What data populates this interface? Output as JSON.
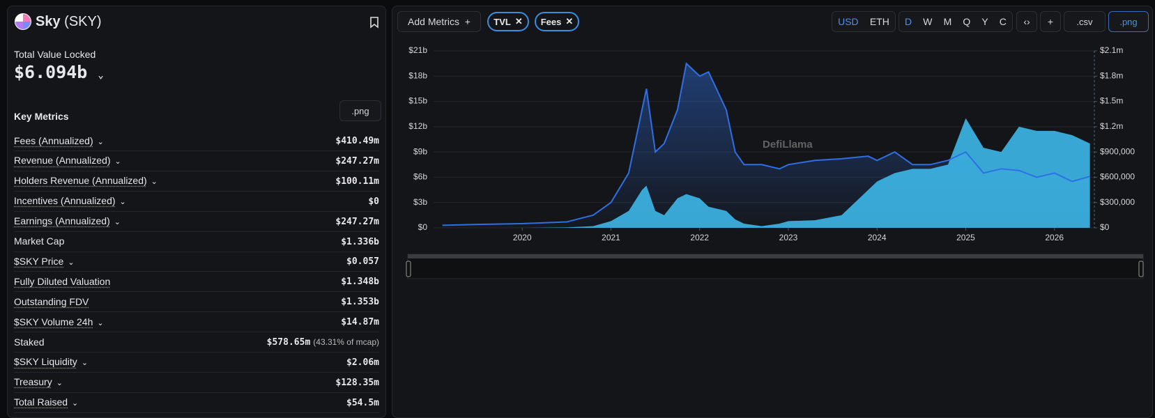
{
  "header": {
    "name": "Sky",
    "ticker": "(SKY)"
  },
  "tvl": {
    "label": "Total Value Locked",
    "value": "$6.094b"
  },
  "key_metrics": {
    "title": "Key Metrics",
    "export": ".png",
    "rows": [
      {
        "label": "Fees (Annualized)",
        "value": "$410.49m"
      },
      {
        "label": "Revenue (Annualized)",
        "value": "$247.27m"
      },
      {
        "label": "Holders Revenue (Annualized)",
        "value": "$100.11m"
      },
      {
        "label": "Incentives (Annualized)",
        "value": "$0"
      },
      {
        "label": "Earnings (Annualized)",
        "value": "$247.27m"
      },
      {
        "label": "Market Cap",
        "value": "$1.336b"
      },
      {
        "label": "$SKY Price",
        "value": "$0.057"
      },
      {
        "label": "Fully Diluted Valuation",
        "value": "$1.348b"
      },
      {
        "label": "Outstanding FDV",
        "value": "$1.353b"
      },
      {
        "label": "$SKY Volume 24h",
        "value": "$14.87m"
      },
      {
        "label": "Staked",
        "value": "$578.65m",
        "note": "(43.31% of mcap)"
      },
      {
        "label": "$SKY Liquidity",
        "value": "$2.06m"
      },
      {
        "label": "Treasury",
        "value": "$128.35m"
      },
      {
        "label": "Total Raised",
        "value": "$54.5m"
      }
    ]
  },
  "toolbar": {
    "add_metrics": "Add Metrics",
    "currencies": [
      "USD",
      "ETH"
    ],
    "periods": [
      "D",
      "W",
      "M",
      "Q",
      "Y",
      "C"
    ],
    "csv": ".csv",
    "png": ".png"
  },
  "chart_data": {
    "type": "area",
    "watermark": "DefiLlama",
    "x": [
      2019.1,
      2019.5,
      2020.0,
      2020.5,
      2020.8,
      2021.0,
      2021.2,
      2021.35,
      2021.4,
      2021.5,
      2021.6,
      2021.75,
      2021.85,
      2022.0,
      2022.1,
      2022.3,
      2022.4,
      2022.5,
      2022.7,
      2022.9,
      2023.0,
      2023.3,
      2023.6,
      2023.9,
      2024.0,
      2024.2,
      2024.4,
      2024.6,
      2024.8,
      2025.0,
      2025.2,
      2025.4,
      2025.6,
      2025.8,
      2026.0,
      2026.2,
      2026.4
    ],
    "series": [
      {
        "name": "TVL",
        "color": "#2f6fe4",
        "axis": "y",
        "values": [
          0.3,
          0.4,
          0.5,
          0.7,
          1.5,
          3.0,
          6.5,
          14,
          16.5,
          9,
          10,
          14,
          19.5,
          18,
          18.5,
          14,
          9,
          7.5,
          7.5,
          7,
          7.5,
          8,
          8.2,
          8.5,
          8,
          9,
          7.5,
          7.5,
          8,
          9,
          6.5,
          7,
          6.8,
          6,
          6.5,
          5.5,
          6.1
        ]
      },
      {
        "name": "Fees",
        "color": "#3fc1f5",
        "axis": "y2",
        "values": [
          0,
          0,
          0,
          5000,
          20000,
          80000,
          200000,
          450000,
          500000,
          200000,
          150000,
          350000,
          400000,
          350000,
          250000,
          200000,
          100000,
          50000,
          20000,
          50000,
          80000,
          90000,
          150000,
          450000,
          550000,
          650000,
          700000,
          700000,
          750000,
          1300000,
          950000,
          900000,
          1200000,
          1150000,
          1150000,
          1100000,
          1000000
        ]
      }
    ],
    "xlim": [
      2019.0,
      2026.45
    ],
    "xticks": [
      2020,
      2021,
      2022,
      2023,
      2024,
      2025,
      2026
    ],
    "ylim": [
      0,
      21
    ],
    "yticks": [
      {
        "value": 0,
        "label": "$0"
      },
      {
        "value": 3,
        "label": "$3b"
      },
      {
        "value": 6,
        "label": "$6b"
      },
      {
        "value": 9,
        "label": "$9b"
      },
      {
        "value": 12,
        "label": "$12b"
      },
      {
        "value": 15,
        "label": "$15b"
      },
      {
        "value": 18,
        "label": "$18b"
      },
      {
        "value": 21,
        "label": "$21b"
      }
    ],
    "y2lim": [
      0,
      2100000
    ],
    "y2ticks": [
      {
        "value": 0,
        "label": "$0"
      },
      {
        "value": 300000,
        "label": "$300,000"
      },
      {
        "value": 600000,
        "label": "$600,000"
      },
      {
        "value": 900000,
        "label": "$900,000"
      },
      {
        "value": 1200000,
        "label": "$1.2m"
      },
      {
        "value": 1500000,
        "label": "$1.5m"
      },
      {
        "value": 1800000,
        "label": "$1.8m"
      },
      {
        "value": 2100000,
        "label": "$2.1m"
      }
    ],
    "grid": true
  }
}
